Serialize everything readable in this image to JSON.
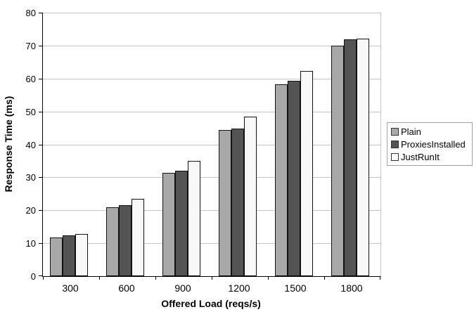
{
  "chart_data": {
    "type": "bar",
    "title": "",
    "xlabel": "Offered Load (reqs/s)",
    "ylabel": "Response Time (ms)",
    "categories": [
      "300",
      "600",
      "900",
      "1200",
      "1500",
      "1800"
    ],
    "series": [
      {
        "name": "Plain",
        "color": "#a8a8a8",
        "values": [
          11.7,
          21.0,
          31.4,
          44.3,
          58.2,
          70.0
        ]
      },
      {
        "name": "ProxiesInstalled",
        "color": "#545454",
        "values": [
          12.4,
          21.6,
          32.1,
          44.7,
          59.2,
          71.9
        ]
      },
      {
        "name": "JustRunIt",
        "color": "#f8f8f8",
        "values": [
          12.9,
          23.5,
          34.9,
          48.5,
          62.3,
          72.2
        ]
      }
    ],
    "ylim": [
      0,
      80
    ],
    "y_ticks": [
      0,
      10,
      20,
      30,
      40,
      50,
      60,
      70,
      80
    ],
    "grid": true,
    "legend_position": "right"
  },
  "colors": {
    "background": "#ffffff",
    "gridline": "#c4c4c4",
    "axis": "#000000",
    "bar_border": "#111111",
    "legend_border": "#a0a0a0"
  }
}
